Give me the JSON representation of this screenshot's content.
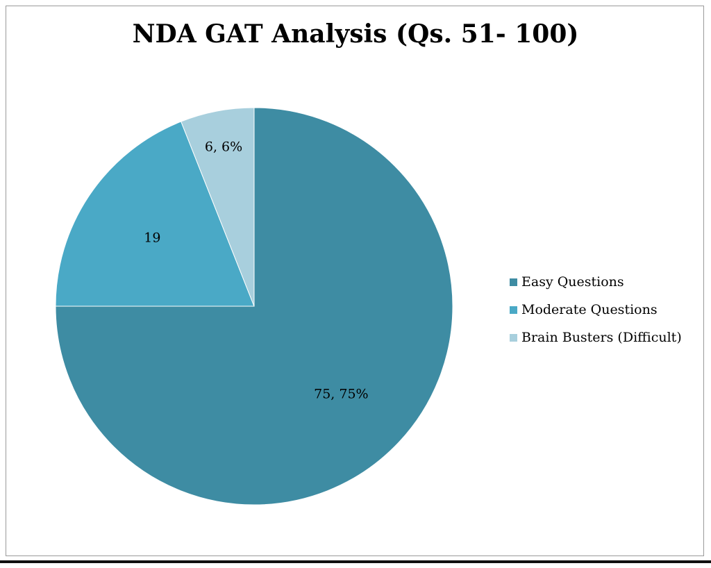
{
  "chart_data": {
    "type": "pie",
    "title": "NDA GAT Analysis (Qs. 51- 100)",
    "slices": [
      {
        "name": "Easy Questions",
        "value": 75,
        "label": "75, 75%",
        "color": "#3e8ca3"
      },
      {
        "name": "Moderate Questions",
        "value": 19,
        "label": "19",
        "color": "#4aa9c6"
      },
      {
        "name": "Brain Busters (Difficult)",
        "value": 6,
        "label": "6, 6%",
        "color": "#a8cfdd"
      }
    ],
    "legend_position": "right"
  }
}
